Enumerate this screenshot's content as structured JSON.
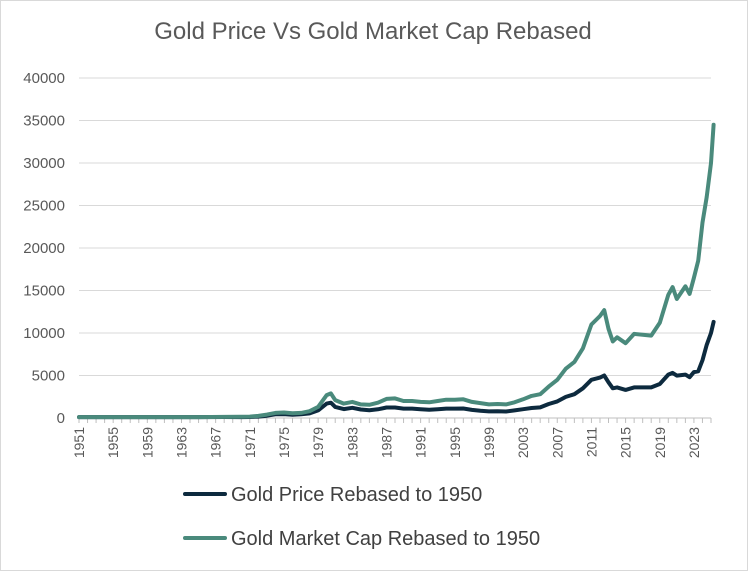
{
  "chart_data": {
    "type": "line",
    "title": "Gold Price Vs Gold Market Cap Rebased",
    "xlabel": "",
    "ylabel": "",
    "ylim": [
      0,
      40000
    ],
    "xlim": [
      1951,
      2025
    ],
    "y_ticks": [
      "0",
      "5000",
      "10000",
      "15000",
      "20000",
      "25000",
      "30000",
      "35000",
      "40000"
    ],
    "x_ticks": [
      "1951",
      "1955",
      "1959",
      "1963",
      "1967",
      "1971",
      "1975",
      "1979",
      "1983",
      "1987",
      "1991",
      "1995",
      "1999",
      "2003",
      "2007",
      "2011",
      "2015",
      "2019",
      "2023"
    ],
    "grid": "horizontal",
    "legend": "bottom",
    "series": [
      {
        "name": "Gold Price Rebased to 1950",
        "color": "#0d2a3e",
        "points": [
          [
            1951,
            100
          ],
          [
            1955,
            100
          ],
          [
            1960,
            100
          ],
          [
            1965,
            100
          ],
          [
            1968,
            120
          ],
          [
            1970,
            110
          ],
          [
            1971,
            120
          ],
          [
            1972,
            170
          ],
          [
            1973,
            270
          ],
          [
            1974,
            430
          ],
          [
            1975,
            460
          ],
          [
            1976,
            380
          ],
          [
            1977,
            430
          ],
          [
            1978,
            540
          ],
          [
            1979,
            900
          ],
          [
            1980,
            1700
          ],
          [
            1980.5,
            1800
          ],
          [
            1981,
            1300
          ],
          [
            1982,
            1050
          ],
          [
            1983,
            1200
          ],
          [
            1984,
            1000
          ],
          [
            1985,
            920
          ],
          [
            1986,
            1020
          ],
          [
            1987,
            1230
          ],
          [
            1988,
            1240
          ],
          [
            1989,
            1100
          ],
          [
            1990,
            1100
          ],
          [
            1991,
            1030
          ],
          [
            1992,
            970
          ],
          [
            1993,
            1040
          ],
          [
            1994,
            1100
          ],
          [
            1995,
            1100
          ],
          [
            1996,
            1120
          ],
          [
            1997,
            950
          ],
          [
            1998,
            850
          ],
          [
            1999,
            780
          ],
          [
            2000,
            800
          ],
          [
            2001,
            770
          ],
          [
            2002,
            900
          ],
          [
            2003,
            1040
          ],
          [
            2004,
            1180
          ],
          [
            2005,
            1250
          ],
          [
            2006,
            1650
          ],
          [
            2007,
            1950
          ],
          [
            2008,
            2480
          ],
          [
            2009,
            2800
          ],
          [
            2010,
            3500
          ],
          [
            2011,
            4500
          ],
          [
            2012,
            4750
          ],
          [
            2012.5,
            5000
          ],
          [
            2013,
            4200
          ],
          [
            2013.5,
            3500
          ],
          [
            2014,
            3600
          ],
          [
            2015,
            3300
          ],
          [
            2016,
            3600
          ],
          [
            2017,
            3600
          ],
          [
            2018,
            3600
          ],
          [
            2019,
            4000
          ],
          [
            2020,
            5100
          ],
          [
            2020.5,
            5300
          ],
          [
            2021,
            4990
          ],
          [
            2022,
            5100
          ],
          [
            2022.5,
            4800
          ],
          [
            2023,
            5400
          ],
          [
            2023.5,
            5500
          ],
          [
            2024,
            6800
          ],
          [
            2024.5,
            8600
          ],
          [
            2025,
            10000
          ],
          [
            2025.3,
            11300
          ]
        ]
      },
      {
        "name": "Gold Market Cap Rebased to 1950",
        "color": "#4a8a7c",
        "points": [
          [
            1951,
            100
          ],
          [
            1955,
            100
          ],
          [
            1960,
            100
          ],
          [
            1965,
            100
          ],
          [
            1968,
            130
          ],
          [
            1970,
            140
          ],
          [
            1971,
            160
          ],
          [
            1972,
            250
          ],
          [
            1973,
            400
          ],
          [
            1974,
            600
          ],
          [
            1975,
            650
          ],
          [
            1976,
            550
          ],
          [
            1977,
            600
          ],
          [
            1978,
            800
          ],
          [
            1979,
            1300
          ],
          [
            1980,
            2700
          ],
          [
            1980.5,
            2900
          ],
          [
            1981,
            2100
          ],
          [
            1982,
            1700
          ],
          [
            1983,
            1900
          ],
          [
            1984,
            1600
          ],
          [
            1985,
            1550
          ],
          [
            1986,
            1800
          ],
          [
            1987,
            2250
          ],
          [
            1988,
            2300
          ],
          [
            1989,
            2000
          ],
          [
            1990,
            2000
          ],
          [
            1991,
            1900
          ],
          [
            1992,
            1850
          ],
          [
            1993,
            2000
          ],
          [
            1994,
            2150
          ],
          [
            1995,
            2150
          ],
          [
            1996,
            2200
          ],
          [
            1997,
            1900
          ],
          [
            1998,
            1750
          ],
          [
            1999,
            1600
          ],
          [
            2000,
            1650
          ],
          [
            2001,
            1600
          ],
          [
            2002,
            1850
          ],
          [
            2003,
            2200
          ],
          [
            2004,
            2600
          ],
          [
            2005,
            2800
          ],
          [
            2006,
            3700
          ],
          [
            2007,
            4500
          ],
          [
            2008,
            5800
          ],
          [
            2009,
            6600
          ],
          [
            2010,
            8200
          ],
          [
            2011,
            11000
          ],
          [
            2012,
            12000
          ],
          [
            2012.5,
            12700
          ],
          [
            2013,
            10500
          ],
          [
            2013.5,
            9000
          ],
          [
            2014,
            9500
          ],
          [
            2015,
            8800
          ],
          [
            2016,
            9900
          ],
          [
            2017,
            9800
          ],
          [
            2018,
            9700
          ],
          [
            2019,
            11200
          ],
          [
            2020,
            14500
          ],
          [
            2020.5,
            15400
          ],
          [
            2021,
            14000
          ],
          [
            2022,
            15500
          ],
          [
            2022.5,
            14600
          ],
          [
            2023,
            16500
          ],
          [
            2023.5,
            18500
          ],
          [
            2024,
            23000
          ],
          [
            2024.5,
            26000
          ],
          [
            2025,
            30000
          ],
          [
            2025.3,
            34500
          ]
        ]
      }
    ]
  }
}
